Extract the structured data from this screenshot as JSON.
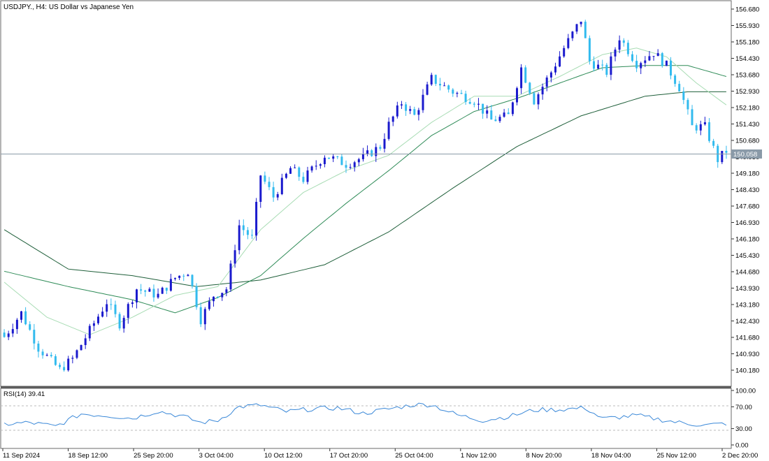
{
  "window": {
    "title": "USDJPY., H4:  US Dollar vs Japanese Yen"
  },
  "price_panel": {
    "current_price": "150.058",
    "y_ticks": [
      "156.680",
      "155.930",
      "155.180",
      "154.430",
      "153.680",
      "152.930",
      "152.180",
      "151.430",
      "150.680",
      "149.930",
      "149.180",
      "148.430",
      "147.680",
      "146.930",
      "146.180",
      "145.430",
      "144.680",
      "143.930",
      "143.180",
      "142.430",
      "141.680",
      "140.930",
      "140.180"
    ]
  },
  "rsi_panel": {
    "title": "RSI(14) 39.41",
    "y_ticks": [
      "100.00",
      "70.00",
      "30.00",
      "0.00"
    ]
  },
  "x_ticks": [
    "11 Sep 2024",
    "18 Sep 12:00",
    "25 Sep 20:00",
    "3 Oct 04:00",
    "10 Oct 12:00",
    "17 Oct 20:00",
    "25 Oct 04:00",
    "1 Nov 12:00",
    "8 Nov 20:00",
    "18 Nov 04:00",
    "25 Nov 12:00",
    "2 Dec 20:00"
  ],
  "colors": {
    "bull": "#1a1acd",
    "bear": "#33bbee",
    "ma_fast": "#a8dcb4",
    "ma_mid": "#2e8b57",
    "ma_slow": "#1f5f3a",
    "rsi_line": "#3a88d8",
    "grid": "#999999",
    "price_line": "#8a9aa8"
  },
  "chart_data": {
    "type": "candlestick",
    "symbol": "USDJPY.",
    "timeframe": "H4",
    "price_range": [
      139.6,
      157.1
    ],
    "current_price": 150.058,
    "rsi_period": 14,
    "rsi_last": 39.41,
    "rsi_range": [
      0,
      100
    ],
    "rsi_levels": [
      70,
      30
    ],
    "close_path": [
      [
        0,
        141.7
      ],
      [
        4,
        142.8
      ],
      [
        8,
        141.2
      ],
      [
        13,
        140.2
      ],
      [
        16,
        140.7
      ],
      [
        20,
        142.0
      ],
      [
        24,
        143.3
      ],
      [
        27,
        142.3
      ],
      [
        31,
        143.9
      ],
      [
        36,
        143.6
      ],
      [
        40,
        144.4
      ],
      [
        43,
        144.7
      ],
      [
        46,
        142.5
      ],
      [
        49,
        143.6
      ],
      [
        52,
        143.9
      ],
      [
        55,
        146.8
      ],
      [
        58,
        146.2
      ],
      [
        60,
        149.1
      ],
      [
        63,
        148.1
      ],
      [
        67,
        149.4
      ],
      [
        70,
        148.9
      ],
      [
        75,
        150.0
      ],
      [
        80,
        149.6
      ],
      [
        84,
        149.9
      ],
      [
        88,
        150.4
      ],
      [
        90,
        151.4
      ],
      [
        93,
        152.4
      ],
      [
        96,
        151.8
      ],
      [
        100,
        153.5
      ],
      [
        105,
        152.9
      ],
      [
        110,
        152.5
      ],
      [
        114,
        151.6
      ],
      [
        118,
        151.8
      ],
      [
        121,
        154.0
      ],
      [
        124,
        152.5
      ],
      [
        128,
        153.8
      ],
      [
        131,
        154.9
      ],
      [
        135,
        156.2
      ],
      [
        137,
        154.3
      ],
      [
        141,
        153.8
      ],
      [
        144,
        155.4
      ],
      [
        148,
        154.2
      ],
      [
        152,
        154.7
      ],
      [
        155,
        154.1
      ],
      [
        158,
        153.1
      ],
      [
        161,
        151.3
      ],
      [
        164,
        151.3
      ],
      [
        167,
        149.8
      ],
      [
        169,
        150.2
      ]
    ],
    "ma_fast": [
      [
        0,
        144.2
      ],
      [
        10,
        142.6
      ],
      [
        20,
        141.8
      ],
      [
        30,
        142.6
      ],
      [
        40,
        143.6
      ],
      [
        50,
        144.0
      ],
      [
        60,
        146.6
      ],
      [
        70,
        148.3
      ],
      [
        80,
        149.3
      ],
      [
        90,
        150.0
      ],
      [
        100,
        151.5
      ],
      [
        110,
        152.7
      ],
      [
        120,
        152.7
      ],
      [
        130,
        153.6
      ],
      [
        140,
        154.6
      ],
      [
        148,
        154.9
      ],
      [
        155,
        154.5
      ],
      [
        162,
        153.3
      ],
      [
        169,
        152.3
      ]
    ],
    "ma_mid": [
      [
        0,
        144.7
      ],
      [
        15,
        144.0
      ],
      [
        30,
        143.4
      ],
      [
        40,
        142.8
      ],
      [
        50,
        143.5
      ],
      [
        60,
        144.5
      ],
      [
        70,
        146.2
      ],
      [
        80,
        147.8
      ],
      [
        90,
        149.3
      ],
      [
        100,
        150.9
      ],
      [
        110,
        152.0
      ],
      [
        120,
        152.6
      ],
      [
        130,
        153.3
      ],
      [
        140,
        154.0
      ],
      [
        150,
        154.1
      ],
      [
        160,
        154.1
      ],
      [
        169,
        153.6
      ]
    ],
    "ma_slow": [
      [
        0,
        146.6
      ],
      [
        15,
        144.8
      ],
      [
        30,
        144.5
      ],
      [
        45,
        144.0
      ],
      [
        60,
        144.3
      ],
      [
        75,
        145.0
      ],
      [
        90,
        146.5
      ],
      [
        105,
        148.5
      ],
      [
        120,
        150.4
      ],
      [
        135,
        151.8
      ],
      [
        150,
        152.7
      ],
      [
        160,
        152.9
      ],
      [
        169,
        152.9
      ]
    ],
    "rsi_path": [
      [
        0,
        38
      ],
      [
        6,
        41
      ],
      [
        12,
        34
      ],
      [
        18,
        57
      ],
      [
        24,
        54
      ],
      [
        30,
        49
      ],
      [
        36,
        62
      ],
      [
        42,
        52
      ],
      [
        46,
        41
      ],
      [
        50,
        45
      ],
      [
        55,
        70
      ],
      [
        60,
        73
      ],
      [
        66,
        61
      ],
      [
        72,
        66
      ],
      [
        78,
        68
      ],
      [
        84,
        58
      ],
      [
        90,
        66
      ],
      [
        96,
        74
      ],
      [
        100,
        74
      ],
      [
        106,
        55
      ],
      [
        112,
        45
      ],
      [
        118,
        52
      ],
      [
        124,
        64
      ],
      [
        130,
        65
      ],
      [
        136,
        68
      ],
      [
        140,
        48
      ],
      [
        148,
        54
      ],
      [
        154,
        46
      ],
      [
        158,
        41
      ],
      [
        164,
        36
      ],
      [
        169,
        39.41
      ]
    ]
  }
}
